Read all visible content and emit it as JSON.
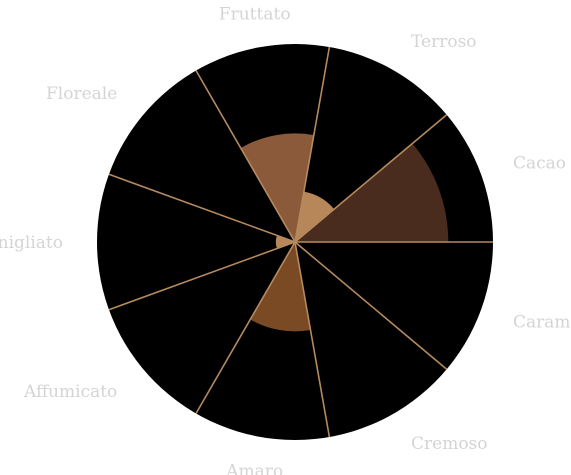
{
  "chart_data": {
    "type": "polar-area",
    "categories": [
      "Cacao",
      "Terroso",
      "Fruttato",
      "Floreale",
      "Vanigliato",
      "Affumicato",
      "Amaro",
      "Cremoso",
      "Caramellato"
    ],
    "values": [
      2.4,
      0.8,
      1.7,
      0.0,
      0.3,
      0.0,
      1.4,
      0.0,
      0.0
    ],
    "rmax": 3.1,
    "start_angle_deg": 0,
    "sector_span_deg": 40,
    "direction": "counterclockwise",
    "grid": false,
    "legend": "none"
  },
  "colors": {
    "background": "#000000",
    "spoke": "#b58a5e",
    "label": "#d4d4d4",
    "sectors": [
      "#4a2c1e",
      "#b7875a",
      "#8b5a3a",
      "#8b5a3a",
      "#b7875a",
      "#6f4a2d",
      "#7a4a24",
      "#3a2416",
      "#2f1f12"
    ]
  }
}
